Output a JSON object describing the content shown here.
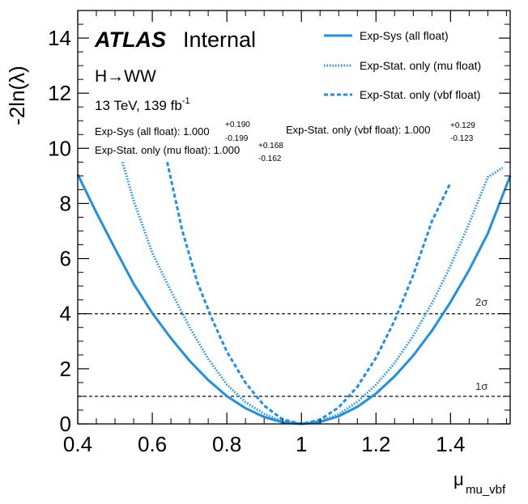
{
  "labels": {
    "atlas": "ATLAS",
    "internal": "Internal",
    "process": "H→WW",
    "energy": "13 TeV, 139 fb",
    "energy_exp": "-1",
    "one_sigma": "1σ",
    "two_sigma": "2σ"
  },
  "results": [
    {
      "name": "Exp-Sys (all float)",
      "prefix": "Exp-Sys (all float): ",
      "central": "1.000",
      "up": "+0.190",
      "down": "-0.199"
    },
    {
      "name": "Exp-Stat. only (vbf float)",
      "prefix": "Exp-Stat. only (vbf float): ",
      "central": "1.000",
      "up": "+0.129",
      "down": "-0.123"
    },
    {
      "name": "Exp-Stat. only (mu float)",
      "prefix": "Exp-Stat. only (mu float): ",
      "central": "1.000",
      "up": "+0.168",
      "down": "-0.162"
    }
  ],
  "colors": {
    "curve": "#1e90e6",
    "sigma_line": "#333333",
    "axis": "#000000"
  },
  "chart_data": {
    "type": "line",
    "title": "",
    "xlabel": "μ",
    "xlabel_sub": "mu_vbf",
    "ylabel": "-2ln(λ)",
    "xlim": [
      0.4,
      1.56
    ],
    "ylim": [
      0,
      15
    ],
    "x_ticks": [
      0.4,
      0.6,
      0.8,
      1,
      1.2,
      1.4
    ],
    "x_tick_labels": [
      "0.4",
      "0.6",
      "0.8",
      "1",
      "1.2",
      "1.4"
    ],
    "y_ticks": [
      0,
      2,
      4,
      6,
      8,
      10,
      12,
      14
    ],
    "y_tick_labels": [
      "0",
      "2",
      "4",
      "6",
      "8",
      "10",
      "12",
      "14"
    ],
    "legend_position": "top-right",
    "reference_lines": [
      {
        "y": 1,
        "label": "1σ"
      },
      {
        "y": 4,
        "label": "2σ"
      }
    ],
    "series": [
      {
        "name": "Exp-Sys (all float)",
        "style": "solid",
        "x": [
          0.4,
          0.45,
          0.5,
          0.55,
          0.6,
          0.65,
          0.7,
          0.75,
          0.8,
          0.85,
          0.9,
          0.95,
          1.0,
          1.05,
          1.1,
          1.15,
          1.2,
          1.25,
          1.3,
          1.35,
          1.4,
          1.45,
          1.5,
          1.56
        ],
        "y": [
          9.05,
          7.67,
          6.36,
          5.08,
          4.02,
          3.11,
          2.29,
          1.59,
          1.01,
          0.57,
          0.25,
          0.06,
          0.0,
          0.07,
          0.28,
          0.62,
          1.1,
          1.73,
          2.48,
          3.38,
          4.42,
          5.59,
          6.91,
          9.0
        ]
      },
      {
        "name": "Exp-Stat. only (mu float)",
        "style": "dotted",
        "x": [
          0.52,
          0.55,
          0.6,
          0.65,
          0.7,
          0.75,
          0.8,
          0.85,
          0.9,
          0.95,
          1.0,
          1.05,
          1.1,
          1.15,
          1.2,
          1.25,
          1.3,
          1.35,
          1.4,
          1.45,
          1.5,
          1.54
        ],
        "y": [
          9.5,
          8.1,
          6.2,
          4.82,
          3.51,
          2.36,
          1.43,
          0.79,
          0.36,
          0.09,
          0.0,
          0.09,
          0.35,
          0.8,
          1.42,
          2.21,
          3.2,
          4.37,
          5.73,
          7.28,
          8.95,
          9.3
        ]
      },
      {
        "name": "Exp-Stat. only (vbf float)",
        "style": "dashed",
        "x": [
          0.64,
          0.68,
          0.72,
          0.76,
          0.8,
          0.85,
          0.9,
          0.95,
          1.0,
          1.05,
          1.1,
          1.15,
          1.2,
          1.25,
          1.3,
          1.35,
          1.4
        ],
        "y": [
          9.5,
          7.04,
          5.17,
          3.82,
          2.62,
          1.49,
          0.66,
          0.16,
          0.0,
          0.15,
          0.6,
          1.35,
          2.4,
          3.75,
          5.4,
          7.35,
          8.75
        ]
      }
    ]
  }
}
